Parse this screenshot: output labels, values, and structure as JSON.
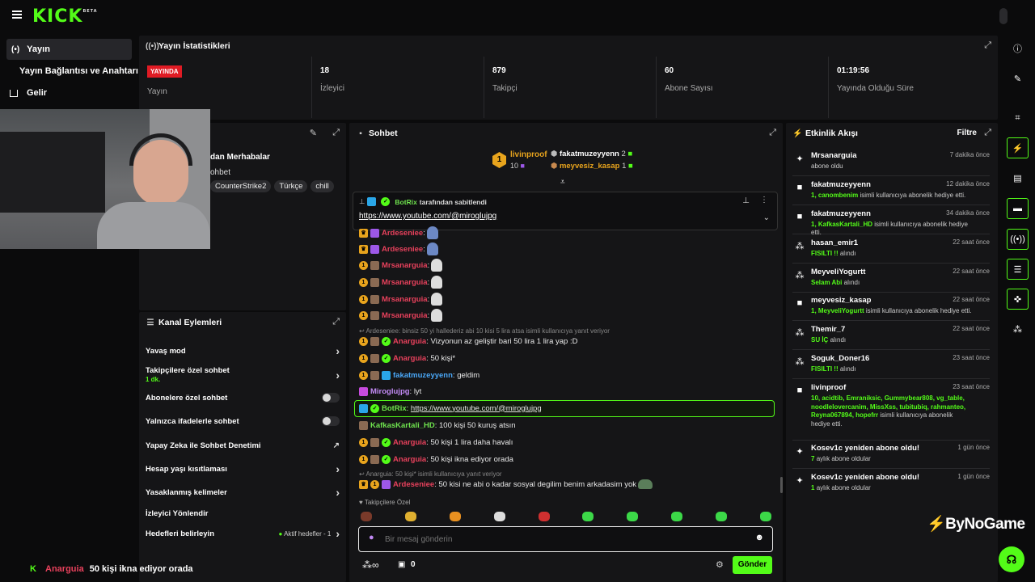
{
  "brand": {
    "logo": "KICK",
    "beta": "BETA"
  },
  "sidebar": {
    "items": [
      {
        "label": "Yayın",
        "icon": "broadcast-icon"
      },
      {
        "label": "Yayın Bağlantısı ve Anahtarı"
      },
      {
        "label": "Gelir",
        "icon": "chart-icon"
      }
    ]
  },
  "stats": {
    "title": "Yayın İstatistikleri",
    "live_badge": "YAYINDA",
    "items": [
      {
        "value": "",
        "label": "Yayın"
      },
      {
        "value": "18",
        "label": "İzleyici"
      },
      {
        "value": "879",
        "label": "Takipçi"
      },
      {
        "value": "60",
        "label": "Abone Sayısı"
      },
      {
        "value": "01:19:56",
        "label": "Yayında Olduğu Süre"
      }
    ]
  },
  "stream_info": {
    "title": "dan Merhabalar",
    "subtitle": "ohbet",
    "tags": [
      "CounterStrike2",
      "Türkçe",
      "chill"
    ]
  },
  "channel_actions": {
    "title": "Kanal Eylemleri",
    "rows": [
      {
        "label": "Yavaş mod",
        "control": "chevron"
      },
      {
        "label": "Takipçilere özel sohbet",
        "sub": "1 dk.",
        "control": "chevron"
      },
      {
        "label": "Abonelere özel sohbet",
        "control": "toggle"
      },
      {
        "label": "Yalnızca ifadelerle sohbet",
        "control": "toggle"
      },
      {
        "label": "Yapay Zeka ile Sohbet Denetimi",
        "control": "external"
      },
      {
        "label": "Hesap yaşı kısıtlaması",
        "control": "chevron"
      },
      {
        "label": "Yasaklanmış kelimeler",
        "control": "chevron"
      },
      {
        "label": "İzleyici Yönlendir",
        "control": "none"
      },
      {
        "label": "Hedefleri belirleyin",
        "status": "Aktif hedefler - 1",
        "control": "chevron"
      }
    ]
  },
  "chat": {
    "title": "Sohbet",
    "leaderboard": {
      "top_name": "livinproof",
      "top_rank": "1",
      "top_count": "10",
      "others": [
        {
          "name": "fakatmuzeyyenn",
          "count": "2"
        },
        {
          "name": "meyvesiz_kasap",
          "count": "1"
        }
      ]
    },
    "pinned": {
      "by_user": "BotRix",
      "by_suffix": "tarafından sabitlendi",
      "link": "https://www.youtube.com/@miroglujpg"
    },
    "messages": [
      {
        "user": "Ardeseniee",
        "text": ":",
        "color": "red"
      },
      {
        "user": "Ardeseniee",
        "text": ":",
        "color": "red"
      },
      {
        "user": "Mrsanarguia",
        "text": ":",
        "color": "red"
      },
      {
        "user": "Mrsanarguia",
        "text": ":",
        "color": "red"
      },
      {
        "user": "Mrsanarguia",
        "text": ":",
        "color": "red"
      },
      {
        "user": "Mrsanarguia",
        "text": ":",
        "color": "red"
      },
      {
        "user": "Anarguia",
        "text": ": Vizyonun az geliştir bari 50 lira 1 lira yap :D",
        "color": "red",
        "reply": "Ardeseniee: binsiz 50 yi hallederiz abi 10 kisi 5 lira atsa isimli kullanıcıya yanıt veriyor"
      },
      {
        "user": "Anarguia",
        "text": ": 50 kişi*",
        "color": "red"
      },
      {
        "user": "fakatmuzeyyenn",
        "text": ": geldim",
        "color": "blue"
      },
      {
        "user": "Miroglujpg",
        "text": ": lyt",
        "color": "violet"
      },
      {
        "user": "BotRix",
        "text": ": ",
        "link": "https://www.youtube.com/@miroglujpg",
        "color": "green"
      },
      {
        "user": "KafkasKartali_HD",
        "text": ": 100 kişi 50 kuruş atsın",
        "color": "green"
      },
      {
        "user": "Anarguia",
        "text": ": 50 kişi 1 lira daha havalı",
        "color": "red"
      },
      {
        "user": "Anarguia",
        "text": ": 50 kişi ikna ediyor orada",
        "color": "red"
      },
      {
        "user": "Ardeseniee",
        "text": ": 50 kisi ne abi o kadar sosyal degilim benim arkadasim yok",
        "color": "red",
        "reply": "Anarguia: 50 kişi* isimli kullanıcıya yanıt veriyor"
      }
    ],
    "followers_only": "Takipçilere Özel",
    "input_placeholder": "Bir mesaj gönderin",
    "footer_count": "0",
    "send_label": "Gönder"
  },
  "activity": {
    "title": "Etkinlik Akışı",
    "filter_label": "Filtre",
    "events": [
      {
        "icon": "sparkle-icon",
        "name": "Mrsanarguia",
        "time": "7 dakika önce",
        "desc": "abone oldu"
      },
      {
        "icon": "gift-icon",
        "name": "fakatmuzeyyenn",
        "time": "12 dakika önce",
        "highlight": "1, canombenim",
        "desc": "isimli kullanıcıya abonelik hediye etti."
      },
      {
        "icon": "gift-icon",
        "name": "fakatmuzeyyenn",
        "time": "34 dakika önce",
        "highlight": "1, KafkasKartali_HD",
        "desc": "isimli kullanıcıya abonelik hediye etti."
      },
      {
        "icon": "kicks-icon",
        "name": "hasan_emir1",
        "time": "22 saat önce",
        "highlight": "FISILTI !!",
        "desc": "alındı"
      },
      {
        "icon": "kicks-icon",
        "name": "MeyveliYogurtt",
        "time": "22 saat önce",
        "highlight": "Selam Abi",
        "desc": "alındı"
      },
      {
        "icon": "gift-icon",
        "name": "meyvesiz_kasap",
        "time": "22 saat önce",
        "highlight": "1, MeyveliYogurtt",
        "desc": "isimli kullanıcıya abonelik hediye etti."
      },
      {
        "icon": "kicks-icon",
        "name": "Themir_7",
        "time": "22 saat önce",
        "highlight": "SU İÇ",
        "desc": "alındı"
      },
      {
        "icon": "kicks-icon",
        "name": "Soguk_Doner16",
        "time": "23 saat önce",
        "highlight": "FISILTI !!",
        "desc": "alındı"
      },
      {
        "icon": "gift-icon",
        "name": "livinproof",
        "time": "23 saat önce",
        "highlight": "10, acidtib, Emraniksic, Gummybear808, vg_table, noodlelovercanim, MissXss, tubitubiq, rahmanteo, Reyna067894, hopefrr",
        "desc": "isimli kullanıcıya abonelik hediye etti."
      },
      {
        "icon": "sparkle-icon",
        "name": "Kosev1c yeniden abone oldu!",
        "time": "1 gün önce",
        "highlight": "7",
        "desc": "aylık abone oldular"
      },
      {
        "icon": "sparkle-icon",
        "name": "Kosev1c yeniden abone oldu!",
        "time": "1 gün önce",
        "highlight": "1",
        "desc": "aylık abone oldular"
      }
    ]
  },
  "ticker": {
    "user": "Anarguia",
    "text": "50 kişi ikna ediyor orada"
  },
  "watermark": "ByNoGame",
  "colors": {
    "accent": "#53fc18",
    "live": "#e01b24",
    "panel": "#151517",
    "bg": "#0b0b0c"
  }
}
